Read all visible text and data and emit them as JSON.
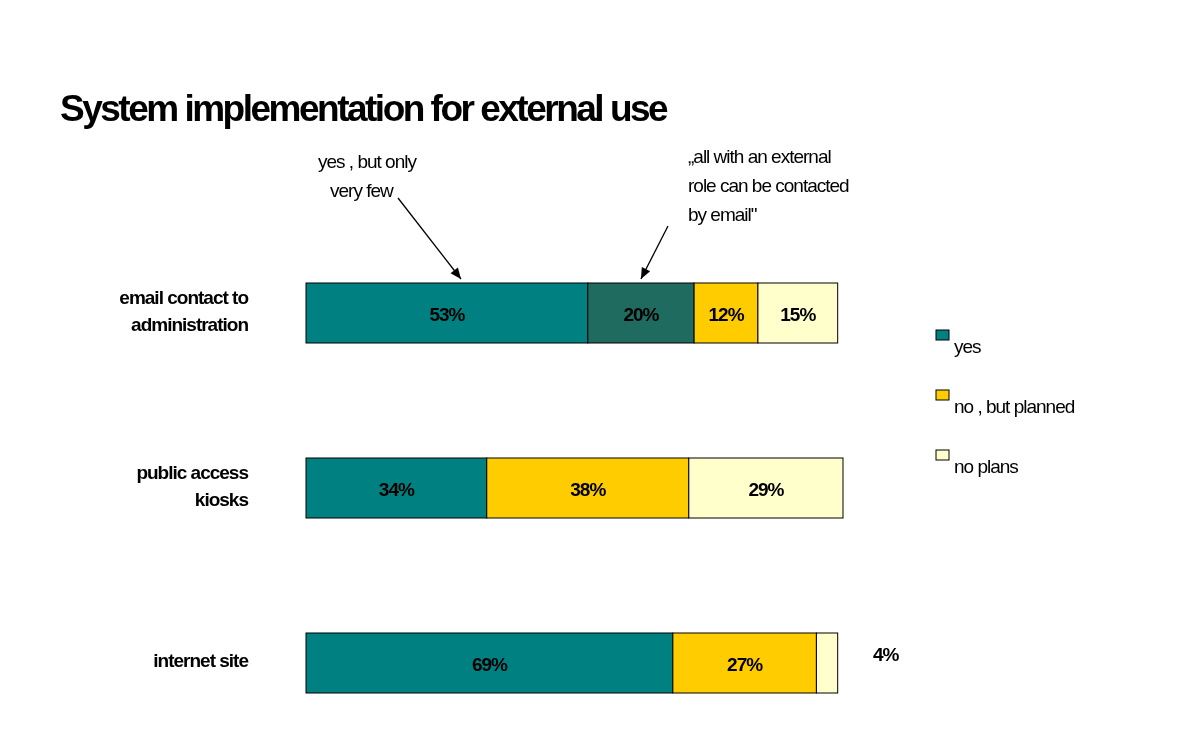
{
  "chart_data": {
    "type": "bar",
    "orientation": "horizontal",
    "stacked": true,
    "title": "System implementation for external use",
    "categories": [
      "email contact to administration",
      "public access kiosks",
      "internet site"
    ],
    "series": [
      {
        "name": "yes",
        "color": "#008080",
        "values": [
          53,
          34,
          69
        ],
        "value_labels": [
          "53%",
          "34%",
          "69%"
        ]
      },
      {
        "color": "#1f6b60",
        "values": [
          20,
          null,
          null
        ],
        "value_labels": [
          "20%",
          null,
          null
        ]
      },
      {
        "name": "no , but planned",
        "color": "#ffcc00",
        "values": [
          12,
          38,
          27
        ],
        "value_labels": [
          "12%",
          "38%",
          "27%"
        ]
      },
      {
        "name": "no plans",
        "color": "#ffffcc",
        "values": [
          15,
          29,
          4
        ],
        "value_labels": [
          "15%",
          "29%",
          "4%"
        ]
      }
    ],
    "annotations": [
      "yes , but only very few",
      "„all with an external role can be contacted by email\""
    ],
    "legend": "right"
  }
}
